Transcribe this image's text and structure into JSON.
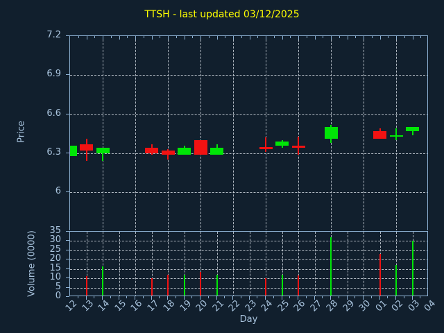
{
  "title": "TTSH - last updated 03/12/2025",
  "colors": {
    "background": "#111f2d",
    "axis_frame": "#8eb2d4",
    "tick_label": "#a9c4de",
    "title": "#ffff00",
    "grid": "rgba(204,212,220,0.85)",
    "up": "#00e606",
    "down": "#f21212"
  },
  "chart_data": {
    "type": "candlestick",
    "title": "TTSH - last updated 03/12/2025",
    "xlabel": "Day",
    "grid": "dashed",
    "categories": [
      "12",
      "13",
      "14",
      "15",
      "16",
      "17",
      "18",
      "19",
      "20",
      "21",
      "22",
      "23",
      "24",
      "25",
      "26",
      "27",
      "28",
      "29",
      "30",
      "01",
      "02",
      "03",
      "04"
    ],
    "price_panel": {
      "ylabel": "Price",
      "ylim": [
        5.7,
        7.2
      ],
      "yticks": [
        {
          "label": "7.2",
          "value": 7.2
        },
        {
          "label": "6.9",
          "value": 6.9
        },
        {
          "label": "6.6",
          "value": 6.6
        },
        {
          "label": "6.3",
          "value": 6.3
        },
        {
          "label": "6",
          "value": 6.0
        }
      ],
      "vertical_gridline_days": [
        "14",
        "16",
        "18",
        "20",
        "22",
        "24",
        "26",
        "28",
        "30",
        "02",
        "04"
      ]
    },
    "volume_panel": {
      "ylabel": "Volume (0000)",
      "ylim": [
        0,
        35
      ],
      "yticks": [
        {
          "label": "35",
          "value": 35
        },
        {
          "label": "30",
          "value": 30
        },
        {
          "label": "25",
          "value": 25
        },
        {
          "label": "20",
          "value": 20
        },
        {
          "label": "15",
          "value": 15
        },
        {
          "label": "10",
          "value": 10
        },
        {
          "label": "5",
          "value": 5
        },
        {
          "label": "0",
          "value": 0
        }
      ],
      "vertical_gridlines": "every-day"
    },
    "points": [
      {
        "day": "12",
        "open": 6.28,
        "high": 6.36,
        "low": 6.28,
        "close": 6.36,
        "volume": 0
      },
      {
        "day": "13",
        "open": 6.37,
        "high": 6.41,
        "low": 6.24,
        "close": 6.32,
        "volume": 11
      },
      {
        "day": "14",
        "open": 6.3,
        "high": 6.34,
        "low": 6.24,
        "close": 6.34,
        "volume": 16.5
      },
      {
        "day": "17",
        "open": 6.34,
        "high": 6.37,
        "low": 6.29,
        "close": 6.3,
        "volume": 10
      },
      {
        "day": "18",
        "open": 6.32,
        "high": 6.33,
        "low": 6.25,
        "close": 6.29,
        "volume": 12
      },
      {
        "day": "19",
        "open": 6.29,
        "high": 6.36,
        "low": 6.29,
        "close": 6.34,
        "volume": 12
      },
      {
        "day": "20",
        "open": 6.4,
        "high": 6.4,
        "low": 6.29,
        "close": 6.29,
        "volume": 13.5
      },
      {
        "day": "21",
        "open": 6.29,
        "high": 6.37,
        "low": 6.29,
        "close": 6.34,
        "volume": 12
      },
      {
        "day": "24",
        "open": 6.35,
        "high": 6.42,
        "low": 6.31,
        "close": 6.33,
        "volume": 10
      },
      {
        "day": "25",
        "open": 6.36,
        "high": 6.4,
        "low": 6.34,
        "close": 6.39,
        "volume": 12
      },
      {
        "day": "26",
        "open": 6.36,
        "high": 6.43,
        "low": 6.29,
        "close": 6.34,
        "volume": 11.5
      },
      {
        "day": "28",
        "open": 6.41,
        "high": 6.52,
        "low": 6.38,
        "close": 6.5,
        "volume": 32
      },
      {
        "day": "01",
        "open": 6.47,
        "high": 6.49,
        "low": 6.41,
        "close": 6.41,
        "volume": 23
      },
      {
        "day": "02",
        "open": 6.43,
        "high": 6.49,
        "low": 6.4,
        "close": 6.44,
        "volume": 17
      },
      {
        "day": "03",
        "open": 6.47,
        "high": 6.5,
        "low": 6.44,
        "close": 6.5,
        "volume": 30
      }
    ]
  }
}
